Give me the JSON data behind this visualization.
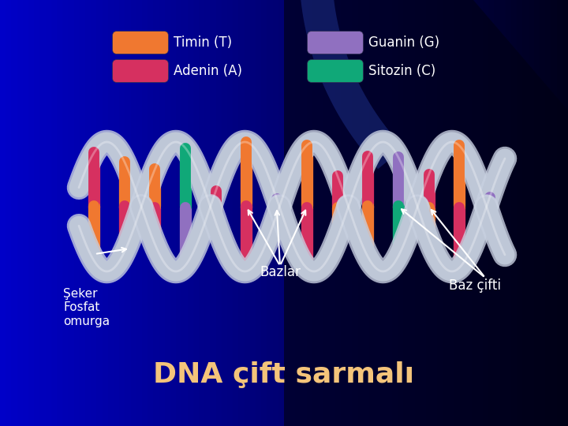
{
  "title": "DNA çift sarmalı",
  "title_color": "#F4C47A",
  "title_fontsize": 26,
  "bg_color_left": "#1a00cc",
  "bg_color_right": "#000033",
  "label_seker": "Şeker\nFosfat\nomurga",
  "label_bazlar": "Bazlar",
  "label_baz_cifti": "Baz çifti",
  "label_adenin": "Adenin (A)",
  "label_timin": "Timin (T)",
  "label_sitozin": "Sitozin (C)",
  "label_guanin": "Guanin (G)",
  "color_adenin": "#d63060",
  "color_timin": "#f07830",
  "color_sitozin": "#10a878",
  "color_guanin": "#9070c0",
  "color_backbone_light": "#c8d0e0",
  "color_backbone_shadow": "#8090a8",
  "text_color": "#ffffff"
}
